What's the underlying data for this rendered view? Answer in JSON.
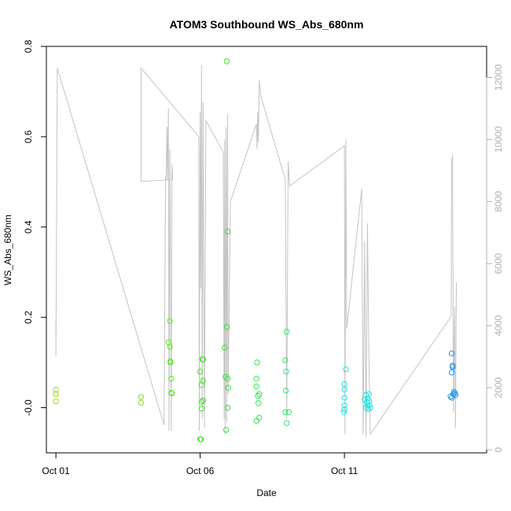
{
  "chart_data": {
    "type": "scatter",
    "title": "ATOM3 Southbound WS_Abs_680nm",
    "xlabel": "Date",
    "ylabel": "WS_Abs_680nm",
    "x_ticks": [
      {
        "day": 1,
        "label": "Oct 01"
      },
      {
        "day": 6,
        "label": "Oct 06"
      },
      {
        "day": 11,
        "label": "Oct 11"
      }
    ],
    "xlim": [
      0.67,
      15.93
    ],
    "ylim": [
      -0.1,
      0.8
    ],
    "y_ticks": [
      "-0.0",
      "0.2",
      "0.4",
      "0.6",
      "0.8"
    ],
    "y2lim": [
      -100,
      13000
    ],
    "y2_ticks": [
      "0",
      "2000",
      "4000",
      "6000",
      "8000",
      "10000",
      "12000"
    ],
    "y2_color": "#b0b0b0",
    "grid": false,
    "scatter_series": [
      {
        "x": 1.0,
        "y": 0.04,
        "color": "#9be31f"
      },
      {
        "x": 1.0,
        "y": 0.03,
        "color": "#9be31f"
      },
      {
        "x": 1.0,
        "y": 0.014,
        "color": "#9be31f"
      },
      {
        "x": 1.0,
        "y": 0.03,
        "color": "#9be31f"
      },
      {
        "x": 3.95,
        "y": 0.024,
        "color": "#76e61e"
      },
      {
        "x": 3.95,
        "y": 0.011,
        "color": "#76e61e"
      },
      {
        "x": 4.9,
        "y": 0.145,
        "color": "#5de819"
      },
      {
        "x": 4.95,
        "y": 0.192,
        "color": "#5de819"
      },
      {
        "x": 4.95,
        "y": 0.135,
        "color": "#5de819"
      },
      {
        "x": 4.97,
        "y": 0.103,
        "color": "#5de819"
      },
      {
        "x": 4.97,
        "y": 0.1,
        "color": "#5de819"
      },
      {
        "x": 5.0,
        "y": 0.064,
        "color": "#5de819"
      },
      {
        "x": 5.0,
        "y": 0.033,
        "color": "#5de819"
      },
      {
        "x": 5.02,
        "y": 0.032,
        "color": "#5de819"
      },
      {
        "x": 6.0,
        "y": 0.08,
        "color": "#3ee622"
      },
      {
        "x": 6.0,
        "y": -0.07,
        "color": "#3ee622"
      },
      {
        "x": 6.03,
        "y": -0.07,
        "color": "#3ee622"
      },
      {
        "x": 6.05,
        "y": 0.05,
        "color": "#3ee622"
      },
      {
        "x": 6.05,
        "y": 0.013,
        "color": "#3ee622"
      },
      {
        "x": 6.05,
        "y": -0.002,
        "color": "#3ee622"
      },
      {
        "x": 6.08,
        "y": 0.107,
        "color": "#3ee622"
      },
      {
        "x": 6.1,
        "y": 0.107,
        "color": "#3ee622"
      },
      {
        "x": 6.1,
        "y": 0.06,
        "color": "#3ee622"
      },
      {
        "x": 6.1,
        "y": 0.016,
        "color": "#3ee622"
      },
      {
        "x": 6.85,
        "y": 0.133,
        "color": "#2fe633"
      },
      {
        "x": 6.88,
        "y": 0.068,
        "color": "#2fe633"
      },
      {
        "x": 6.9,
        "y": -0.049,
        "color": "#2fe633"
      },
      {
        "x": 6.92,
        "y": 0.767,
        "color": "#2fe633"
      },
      {
        "x": 6.95,
        "y": 0.39,
        "color": "#2fe633"
      },
      {
        "x": 6.93,
        "y": 0.179,
        "color": "#2fe633"
      },
      {
        "x": 6.95,
        "y": 0.064,
        "color": "#2fe633"
      },
      {
        "x": 6.97,
        "y": 0.044,
        "color": "#2fe633"
      },
      {
        "x": 6.95,
        "y": 0.0,
        "color": "#2fe633"
      },
      {
        "x": 7.97,
        "y": 0.1,
        "color": "#2ee650"
      },
      {
        "x": 7.95,
        "y": 0.064,
        "color": "#2ee650"
      },
      {
        "x": 7.95,
        "y": 0.047,
        "color": "#2ee650"
      },
      {
        "x": 8.0,
        "y": 0.026,
        "color": "#2ee650"
      },
      {
        "x": 8.05,
        "y": 0.03,
        "color": "#2ee650"
      },
      {
        "x": 8.02,
        "y": 0.01,
        "color": "#2ee650"
      },
      {
        "x": 7.95,
        "y": -0.029,
        "color": "#2ee650"
      },
      {
        "x": 8.05,
        "y": -0.022,
        "color": "#2ee650"
      },
      {
        "x": 8.95,
        "y": 0.105,
        "color": "#2ee672"
      },
      {
        "x": 9.0,
        "y": 0.168,
        "color": "#2ee672"
      },
      {
        "x": 8.98,
        "y": 0.08,
        "color": "#2ee672"
      },
      {
        "x": 8.97,
        "y": 0.038,
        "color": "#2ee672"
      },
      {
        "x": 8.95,
        "y": -0.01,
        "color": "#2ee672"
      },
      {
        "x": 9.07,
        "y": -0.01,
        "color": "#2ee672"
      },
      {
        "x": 9.0,
        "y": -0.034,
        "color": "#2ee672"
      },
      {
        "x": 11.0,
        "y": 0.052,
        "color": "#1ee6e6"
      },
      {
        "x": 11.05,
        "y": 0.085,
        "color": "#1ee6e6"
      },
      {
        "x": 11.0,
        "y": 0.04,
        "color": "#1ee6e6"
      },
      {
        "x": 11.0,
        "y": 0.022,
        "color": "#1ee6e6"
      },
      {
        "x": 11.0,
        "y": 0.005,
        "color": "#1ee6e6"
      },
      {
        "x": 11.0,
        "y": -0.004,
        "color": "#1ee6e6"
      },
      {
        "x": 10.98,
        "y": -0.01,
        "color": "#1ee6e6"
      },
      {
        "x": 11.7,
        "y": 0.018,
        "color": "#1ee6e6"
      },
      {
        "x": 11.75,
        "y": 0.028,
        "color": "#1ee6e6"
      },
      {
        "x": 11.78,
        "y": 0.012,
        "color": "#1ee6e6"
      },
      {
        "x": 11.8,
        "y": 0.005,
        "color": "#1ee6e6"
      },
      {
        "x": 11.75,
        "y": 0.0,
        "color": "#1ee6e6"
      },
      {
        "x": 11.85,
        "y": 0.03,
        "color": "#1ee6e6"
      },
      {
        "x": 11.85,
        "y": 0.015,
        "color": "#1ee6e6"
      },
      {
        "x": 11.87,
        "y": 0.005,
        "color": "#1ee6e6"
      },
      {
        "x": 11.9,
        "y": 0.0,
        "color": "#1ee6e6"
      },
      {
        "x": 11.82,
        "y": -0.003,
        "color": "#1ee6e6"
      },
      {
        "x": 11.8,
        "y": 0.02,
        "color": "#1ee6e6"
      },
      {
        "x": 14.72,
        "y": 0.12,
        "color": "#2196e6"
      },
      {
        "x": 14.72,
        "y": 0.078,
        "color": "#2196e6"
      },
      {
        "x": 14.75,
        "y": 0.09,
        "color": "#2196e6"
      },
      {
        "x": 14.75,
        "y": 0.093,
        "color": "#2196e6"
      },
      {
        "x": 14.68,
        "y": 0.025,
        "color": "#2196e6"
      },
      {
        "x": 14.72,
        "y": 0.022,
        "color": "#2196e6"
      },
      {
        "x": 14.78,
        "y": 0.03,
        "color": "#2196e6"
      },
      {
        "x": 14.8,
        "y": 0.035,
        "color": "#2196e6"
      },
      {
        "x": 14.83,
        "y": 0.032,
        "color": "#2196e6"
      },
      {
        "x": 14.85,
        "y": 0.028,
        "color": "#2196e6"
      }
    ],
    "line_series": {
      "axis": "right",
      "color": "#c4c4c4",
      "points": [
        [
          1.0,
          3600
        ],
        [
          1.0,
          4200
        ],
        [
          1.0,
          3000
        ],
        [
          1.05,
          12300
        ],
        [
          4.75,
          800
        ],
        [
          4.8,
          8800
        ],
        [
          4.82,
          8700
        ],
        [
          4.85,
          10400
        ],
        [
          4.87,
          8700
        ],
        [
          4.9,
          11000
        ],
        [
          4.92,
          600
        ],
        [
          4.95,
          9700
        ],
        [
          5.0,
          600
        ],
        [
          5.02,
          9200
        ],
        [
          5.05,
          8700
        ],
        [
          3.95,
          8650
        ],
        [
          3.95,
          12300
        ],
        [
          5.95,
          10100
        ],
        [
          5.97,
          600
        ],
        [
          6.0,
          10900
        ],
        [
          6.02,
          5200
        ],
        [
          6.05,
          12400
        ],
        [
          6.07,
          1000
        ],
        [
          6.1,
          11200
        ],
        [
          6.15,
          700
        ],
        [
          6.2,
          10600
        ],
        [
          6.8,
          9600
        ],
        [
          6.83,
          1000
        ],
        [
          6.85,
          10000
        ],
        [
          6.87,
          500
        ],
        [
          6.9,
          10400
        ],
        [
          6.92,
          900
        ],
        [
          6.95,
          10800
        ],
        [
          6.97,
          1800
        ],
        [
          7.05,
          8000
        ],
        [
          7.95,
          10500
        ],
        [
          7.97,
          9700
        ],
        [
          8.0,
          10900
        ],
        [
          8.02,
          9900
        ],
        [
          8.05,
          11900
        ],
        [
          8.1,
          11400
        ],
        [
          8.95,
          8700
        ],
        [
          9.0,
          1000
        ],
        [
          9.05,
          9300
        ],
        [
          9.1,
          8500
        ],
        [
          11.0,
          9800
        ],
        [
          11.02,
          500
        ],
        [
          11.05,
          10000
        ],
        [
          11.08,
          3900
        ],
        [
          11.6,
          8400
        ],
        [
          11.65,
          500
        ],
        [
          11.7,
          6700
        ],
        [
          11.75,
          400
        ],
        [
          11.8,
          7300
        ],
        [
          11.85,
          2800
        ],
        [
          11.9,
          500
        ],
        [
          14.7,
          4300
        ],
        [
          14.72,
          9300
        ],
        [
          14.75,
          9500
        ],
        [
          14.78,
          1200
        ],
        [
          14.82,
          4600
        ],
        [
          14.85,
          700
        ],
        [
          14.88,
          5400
        ]
      ]
    }
  }
}
